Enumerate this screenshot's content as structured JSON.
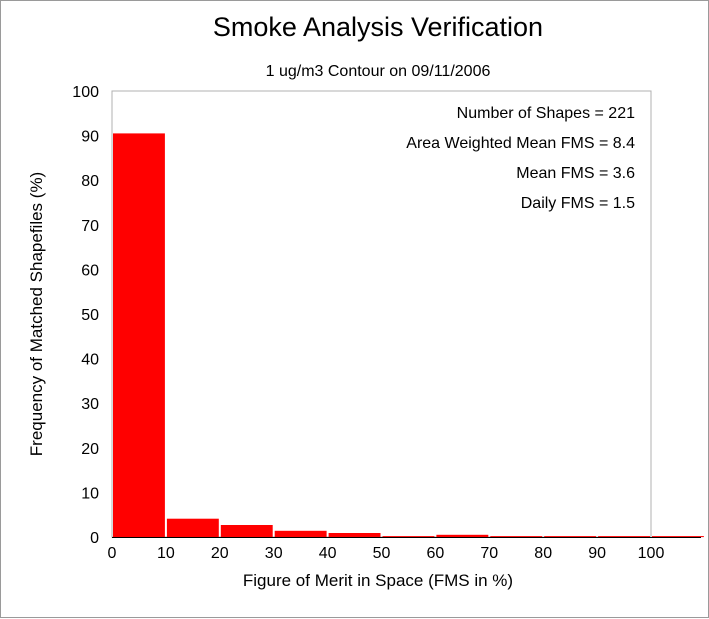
{
  "chart_data": {
    "type": "bar",
    "title": "Smoke Analysis Verification",
    "subtitle": "1 ug/m3 Contour on 09/11/2006",
    "xlabel": "Figure of Merit in Space (FMS in %)",
    "ylabel": "Frequency of Matched Shapefiles (%)",
    "xlim": [
      0,
      100
    ],
    "ylim": [
      0,
      100
    ],
    "xticks": [
      "0",
      "10",
      "20",
      "30",
      "40",
      "50",
      "60",
      "70",
      "80",
      "90",
      "100"
    ],
    "yticks": [
      "0",
      "10",
      "20",
      "30",
      "40",
      "50",
      "60",
      "70",
      "80",
      "90",
      "100"
    ],
    "bins": [
      {
        "from": 0,
        "to": 10,
        "value": 90.5
      },
      {
        "from": 10,
        "to": 20,
        "value": 4.1
      },
      {
        "from": 20,
        "to": 30,
        "value": 2.7
      },
      {
        "from": 30,
        "to": 40,
        "value": 1.4
      },
      {
        "from": 40,
        "to": 50,
        "value": 0.9
      },
      {
        "from": 50,
        "to": 60,
        "value": 0.2
      },
      {
        "from": 60,
        "to": 70,
        "value": 0.5
      },
      {
        "from": 70,
        "to": 80,
        "value": 0.2
      },
      {
        "from": 80,
        "to": 90,
        "value": 0.2
      },
      {
        "from": 90,
        "to": 100,
        "value": 0.2
      },
      {
        "from": 100,
        "to": 110,
        "value": 0.2
      }
    ],
    "bar_color": "#ff0000",
    "annotations": [
      "Number of Shapes = 221",
      "Area Weighted Mean FMS = 8.4",
      "Mean FMS = 3.6",
      "Daily FMS = 1.5"
    ],
    "annotation_placement": "top-right",
    "grid": false
  }
}
